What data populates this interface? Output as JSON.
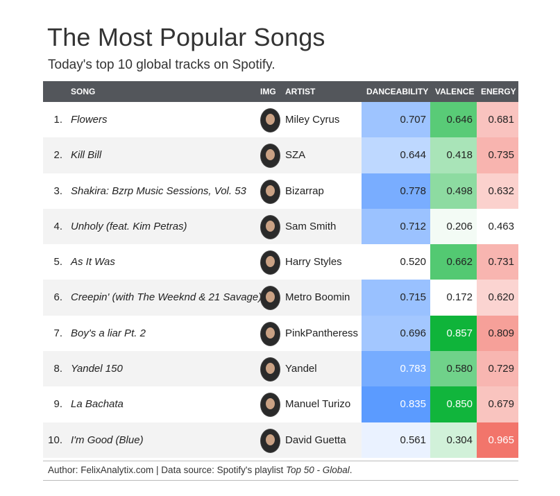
{
  "title": "The Most Popular Songs",
  "subtitle": "Today's top 10 global tracks on Spotify.",
  "header": {
    "song": "SONG",
    "img": "IMG",
    "artist": "ARTIST",
    "danceability": "DANCEABILITY",
    "valence": "VALENCE",
    "energy": "ENERGY"
  },
  "footer": {
    "prefix": "Author: FelixAnalytix.com | Data source: Spotify's playlist ",
    "playlist": "Top 50 - Global",
    "suffix": "."
  },
  "chart_data": {
    "type": "table",
    "columns": [
      "SONG",
      "IMG",
      "ARTIST",
      "DANCEABILITY",
      "VALENCE",
      "ENERGY"
    ],
    "rows": [
      {
        "rank": "1.",
        "song": "Flowers",
        "artist": "Miley Cyrus",
        "danceability": "0.707",
        "valence": "0.646",
        "energy": "0.681"
      },
      {
        "rank": "2.",
        "song": "Kill Bill",
        "artist": "SZA",
        "danceability": "0.644",
        "valence": "0.418",
        "energy": "0.735"
      },
      {
        "rank": "3.",
        "song": "Shakira: Bzrp Music Sessions, Vol. 53",
        "artist": "Bizarrap",
        "danceability": "0.778",
        "valence": "0.498",
        "energy": "0.632"
      },
      {
        "rank": "4.",
        "song": "Unholy (feat. Kim Petras)",
        "artist": "Sam Smith",
        "danceability": "0.712",
        "valence": "0.206",
        "energy": "0.463"
      },
      {
        "rank": "5.",
        "song": "As It Was",
        "artist": "Harry Styles",
        "danceability": "0.520",
        "valence": "0.662",
        "energy": "0.731"
      },
      {
        "rank": "6.",
        "song": "Creepin' (with The Weeknd & 21 Savage)",
        "artist": "Metro Boomin",
        "danceability": "0.715",
        "valence": "0.172",
        "energy": "0.620"
      },
      {
        "rank": "7.",
        "song": "Boy's a liar Pt. 2",
        "artist": "PinkPantheress",
        "danceability": "0.696",
        "valence": "0.857",
        "energy": "0.809"
      },
      {
        "rank": "8.",
        "song": "Yandel 150",
        "artist": "Yandel",
        "danceability": "0.783",
        "valence": "0.580",
        "energy": "0.729"
      },
      {
        "rank": "9.",
        "song": "La Bachata",
        "artist": "Manuel Turizo",
        "danceability": "0.835",
        "valence": "0.850",
        "energy": "0.679"
      },
      {
        "rank": "10.",
        "song": "I'm Good (Blue)",
        "artist": "David Guetta",
        "danceability": "0.561",
        "valence": "0.304",
        "energy": "0.965"
      }
    ],
    "color_scales": {
      "danceability": {
        "low": "#ffffff",
        "high": "#5b9bff",
        "min": 0.52,
        "max": 0.835
      },
      "valence": {
        "low": "#ffffff",
        "high": "#0fb43a",
        "min": 0.172,
        "max": 0.857
      },
      "energy": {
        "low": "#ffffff",
        "high": "#f2756b",
        "min": 0.463,
        "max": 0.965
      }
    }
  }
}
